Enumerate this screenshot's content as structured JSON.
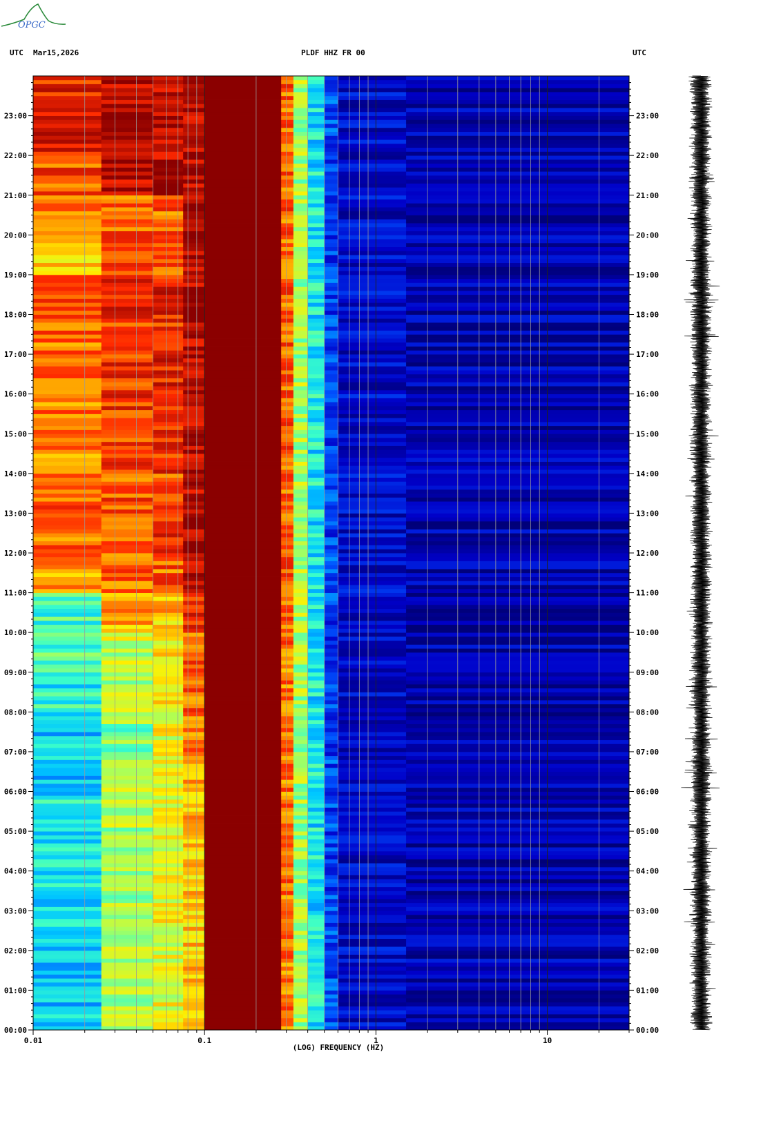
{
  "header": {
    "left_tz": "UTC",
    "date": "Mar15,2026",
    "station": "PLDF HHZ FR 00",
    "right_tz": "UTC"
  },
  "logo": {
    "text": "OPGC",
    "color": "#2a8a3a"
  },
  "colors": {
    "low": "#00008b",
    "mid_low": "#0000c8",
    "cyan": "#00e5ff",
    "green": "#7cff7c",
    "yellow": "#ffee00",
    "orange": "#ff8c00",
    "red": "#ff1a00",
    "high": "#8b0000"
  },
  "chart_data": {
    "type": "heatmap",
    "title": "PLDF HHZ FR 00",
    "xlabel": "(LOG) FREQUENCY (HZ)",
    "xscale": "log",
    "xlim": [
      0.01,
      30
    ],
    "x_ticks": [
      {
        "value": 0.01,
        "label": "0.01"
      },
      {
        "value": 0.1,
        "label": "0.1"
      },
      {
        "value": 1,
        "label": "1"
      },
      {
        "value": 10,
        "label": "10"
      }
    ],
    "ylabel": "UTC",
    "ylim_hours": [
      0,
      24
    ],
    "y_ticks": [
      "00:00",
      "01:00",
      "02:00",
      "03:00",
      "04:00",
      "05:00",
      "06:00",
      "07:00",
      "08:00",
      "09:00",
      "10:00",
      "11:00",
      "12:00",
      "13:00",
      "14:00",
      "15:00",
      "16:00",
      "17:00",
      "18:00",
      "19:00",
      "20:00",
      "21:00",
      "22:00",
      "23:00"
    ],
    "grid": true,
    "bands": [
      {
        "f_min": 0.01,
        "f_max": 0.025,
        "level_by_hour": [
          0.35,
          0.35,
          0.38,
          0.38,
          0.4,
          0.4,
          0.38,
          0.38,
          0.42,
          0.45,
          0.45,
          0.75,
          0.8,
          0.8,
          0.75,
          0.78,
          0.8,
          0.78,
          0.82,
          0.7,
          0.75,
          0.82,
          0.88,
          0.88
        ]
      },
      {
        "f_min": 0.025,
        "f_max": 0.05,
        "level_by_hour": [
          0.55,
          0.55,
          0.58,
          0.55,
          0.55,
          0.55,
          0.55,
          0.52,
          0.55,
          0.58,
          0.72,
          0.8,
          0.82,
          0.82,
          0.85,
          0.85,
          0.85,
          0.85,
          0.88,
          0.8,
          0.8,
          0.95,
          0.95,
          0.95
        ]
      },
      {
        "f_min": 0.05,
        "f_max": 0.075,
        "level_by_hour": [
          0.62,
          0.62,
          0.62,
          0.62,
          0.62,
          0.62,
          0.62,
          0.62,
          0.65,
          0.65,
          0.7,
          0.8,
          0.85,
          0.8,
          0.85,
          0.88,
          0.88,
          0.85,
          0.88,
          0.82,
          0.8,
          0.95,
          0.95,
          0.95
        ]
      },
      {
        "f_min": 0.075,
        "f_max": 0.1,
        "level_by_hour": [
          0.7,
          0.7,
          0.7,
          0.7,
          0.7,
          0.72,
          0.75,
          0.78,
          0.8,
          0.8,
          0.85,
          0.95,
          0.95,
          0.95,
          0.95,
          0.95,
          0.95,
          0.95,
          0.95,
          0.95,
          0.95,
          0.95,
          0.95,
          0.95
        ]
      },
      {
        "f_min": 0.1,
        "f_max": 0.28,
        "level_by_hour": [
          1,
          1,
          1,
          1,
          1,
          1,
          1,
          1,
          1,
          1,
          1,
          1,
          1,
          1,
          1,
          1,
          1,
          1,
          1,
          1,
          1,
          1,
          1,
          1
        ]
      },
      {
        "f_min": 0.28,
        "f_max": 0.33,
        "level_by_hour": [
          0.78,
          0.78,
          0.78,
          0.78,
          0.78,
          0.78,
          0.78,
          0.78,
          0.78,
          0.78,
          0.8,
          0.8,
          0.8,
          0.8,
          0.8,
          0.8,
          0.8,
          0.8,
          0.8,
          0.8,
          0.8,
          0.8,
          0.8,
          0.8
        ]
      },
      {
        "f_min": 0.33,
        "f_max": 0.4,
        "level_by_hour": [
          0.55,
          0.55,
          0.55,
          0.55,
          0.55,
          0.55,
          0.55,
          0.55,
          0.55,
          0.55,
          0.55,
          0.55,
          0.55,
          0.55,
          0.55,
          0.55,
          0.55,
          0.55,
          0.55,
          0.55,
          0.55,
          0.55,
          0.55,
          0.55
        ]
      },
      {
        "f_min": 0.4,
        "f_max": 0.5,
        "level_by_hour": [
          0.4,
          0.4,
          0.4,
          0.4,
          0.4,
          0.4,
          0.4,
          0.4,
          0.4,
          0.4,
          0.4,
          0.4,
          0.4,
          0.4,
          0.4,
          0.4,
          0.4,
          0.4,
          0.4,
          0.4,
          0.4,
          0.4,
          0.4,
          0.4
        ]
      },
      {
        "f_min": 0.5,
        "f_max": 0.6,
        "level_by_hour": [
          0.22,
          0.22,
          0.22,
          0.22,
          0.22,
          0.22,
          0.22,
          0.22,
          0.22,
          0.22,
          0.22,
          0.22,
          0.22,
          0.22,
          0.22,
          0.22,
          0.22,
          0.22,
          0.22,
          0.22,
          0.22,
          0.22,
          0.22,
          0.22
        ]
      },
      {
        "f_min": 0.6,
        "f_max": 1.5,
        "level_by_hour": [
          0.12,
          0.12,
          0.12,
          0.12,
          0.12,
          0.12,
          0.12,
          0.12,
          0.12,
          0.12,
          0.12,
          0.12,
          0.12,
          0.12,
          0.12,
          0.12,
          0.12,
          0.12,
          0.12,
          0.12,
          0.12,
          0.12,
          0.12,
          0.12
        ]
      },
      {
        "f_min": 1.5,
        "f_max": 30,
        "level_by_hour": [
          0.08,
          0.08,
          0.08,
          0.08,
          0.08,
          0.08,
          0.08,
          0.08,
          0.08,
          0.08,
          0.08,
          0.08,
          0.08,
          0.08,
          0.08,
          0.08,
          0.08,
          0.08,
          0.08,
          0.08,
          0.08,
          0.08,
          0.08,
          0.08
        ]
      }
    ]
  }
}
